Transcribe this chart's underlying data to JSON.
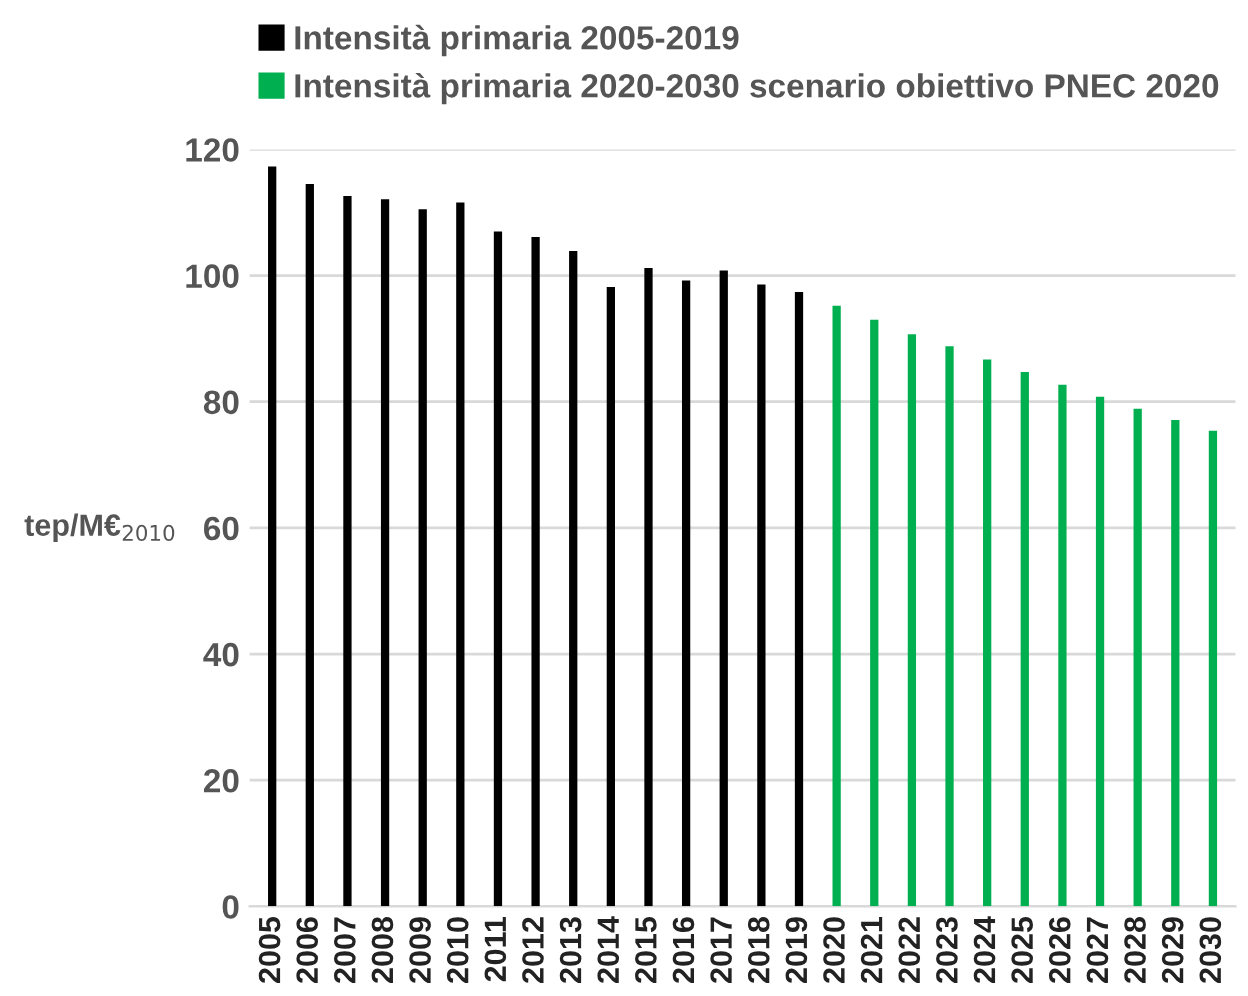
{
  "chart_data": {
    "type": "bar",
    "ylabel": "tep/M€$_{2010}$",
    "categories": [
      "2005",
      "2006",
      "2007",
      "2008",
      "2009",
      "2010",
      "2011",
      "2012",
      "2013",
      "2014",
      "2015",
      "2016",
      "2017",
      "2018",
      "2019",
      "2020",
      "2021",
      "2022",
      "2023",
      "2024",
      "2025",
      "2026",
      "2027",
      "2028",
      "2029",
      "2030"
    ],
    "series": [
      {
        "name": "Intensità primaria 2005-2019",
        "color": "#000000",
        "values": [
          117.3,
          114.5,
          112.6,
          112.1,
          110.5,
          111.6,
          107.0,
          106.1,
          103.9,
          98.2,
          101.2,
          99.2,
          100.8,
          98.6,
          97.4,
          null,
          null,
          null,
          null,
          null,
          null,
          null,
          null,
          null,
          null,
          null
        ]
      },
      {
        "name": "Intensità primaria 2020-2030 scenario obiettivo PNEC 2020",
        "color": "#00b050",
        "values": [
          null,
          null,
          null,
          null,
          null,
          null,
          null,
          null,
          null,
          null,
          null,
          null,
          null,
          null,
          null,
          95.2,
          93.0,
          90.7,
          88.8,
          86.7,
          84.7,
          82.7,
          80.8,
          78.9,
          77.1,
          75.4
        ]
      }
    ],
    "ylim": [
      0,
      120
    ],
    "yticks": [
      0,
      20,
      40,
      60,
      80,
      100,
      120
    ],
    "grid": "y",
    "legend": "top left"
  }
}
